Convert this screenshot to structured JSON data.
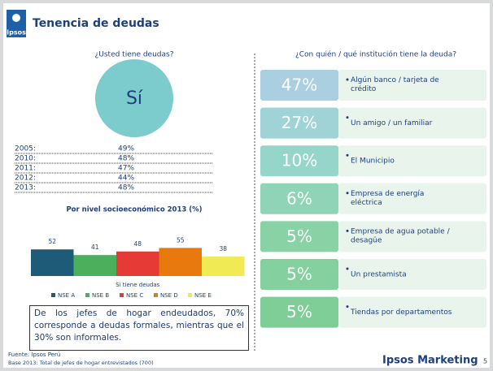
{
  "header": {
    "logo": "Ipsos",
    "title": "Tenencia de deudas"
  },
  "debt": {
    "question": "¿Usted tiene deudas?",
    "answer": "Sí",
    "rows": [
      [
        "2005:",
        "49%"
      ],
      [
        "2010:",
        "48%"
      ],
      [
        "2011:",
        "47%"
      ],
      [
        "2012:",
        "44%"
      ],
      [
        "2013:",
        "48%"
      ]
    ]
  },
  "chart_data": {
    "type": "bar",
    "title": "Por nivel socioeconómico 2013 (%)",
    "categories": [
      "Si tiene deudas"
    ],
    "ylim": [
      0,
      100
    ],
    "series": [
      {
        "name": "NSE A",
        "color": "#1e5b78",
        "values": [
          52
        ]
      },
      {
        "name": "NSE B",
        "color": "#4caf5c",
        "values": [
          41
        ]
      },
      {
        "name": "NSE C",
        "color": "#e53a35",
        "values": [
          48
        ]
      },
      {
        "name": "NSE D",
        "color": "#e8790f",
        "values": [
          55
        ]
      },
      {
        "name": "NSE E",
        "color": "#f0eb55",
        "values": [
          38
        ]
      }
    ]
  },
  "note": "De los jefes de hogar endeudados, 70% corresponde a deudas formales, mientras que el 30% son informales.",
  "institutions": {
    "question": "¿Con quién / qué institución tiene la deuda?",
    "rows": [
      {
        "percent": "47%",
        "label": "Algún banco / tarjeta de crédito"
      },
      {
        "percent": "27%",
        "label": "Un amigo / un familiar"
      },
      {
        "percent": "10%",
        "label": "El Municipio"
      },
      {
        "percent": "6%",
        "label": "Empresa de energía eléctrica"
      },
      {
        "percent": "5%",
        "label": "Empresa de agua potable / desagüe"
      },
      {
        "percent": "5%",
        "label": "Un prestamista"
      },
      {
        "percent": "5%",
        "label": "Tiendas por departamentos"
      }
    ]
  },
  "footer": {
    "source": "Fuente: Ipsos Perú",
    "base": "Base 2013: Total de jefes de hogar entrevistados (700)",
    "brand": "Ipsos Marketing",
    "page": "5"
  }
}
